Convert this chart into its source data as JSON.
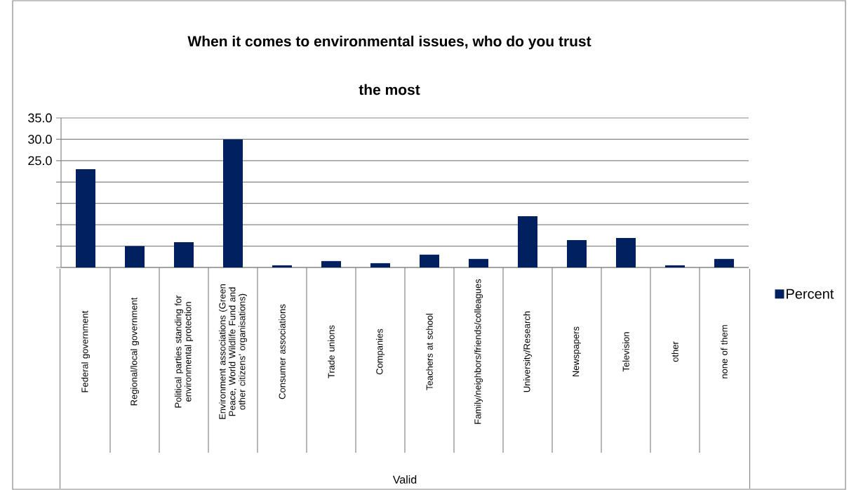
{
  "chart_data": {
    "type": "bar",
    "title": "When it comes to environmental issues, who do you trust the most",
    "annotations": [
      "Valid"
    ],
    "categories": [
      "Federal government",
      "Regional/local government",
      "Political parties standing for environmental protection",
      "Environment associations (Green Peace, World Wildlife Fund and other citizens’ organisations)",
      "Consumer associations",
      "Trade unions",
      "Companies",
      "Teachers at school",
      "Family/neighbors/friends/colleagues",
      "University/Research",
      "Newspapers",
      "Television",
      "other",
      "none of them"
    ],
    "series": [
      {
        "name": "Percent",
        "color": "#002060",
        "values": [
          23.0,
          5.0,
          5.9,
          30.0,
          0.5,
          1.5,
          1.0,
          3.0,
          2.0,
          12.0,
          6.4,
          6.9,
          0.5,
          2.0
        ]
      }
    ],
    "ylim": [
      0,
      35
    ],
    "yticks": [
      {
        "value": 0,
        "label": null
      },
      {
        "value": 5,
        "label": null
      },
      {
        "value": 10,
        "label": null
      },
      {
        "value": 15,
        "label": null
      },
      {
        "value": 20,
        "label": null
      },
      {
        "value": 25,
        "label": "25.0"
      },
      {
        "value": 30,
        "label": "30.0"
      },
      {
        "value": 35,
        "label": "35.0"
      }
    ],
    "grid": "y",
    "legend": "right"
  }
}
